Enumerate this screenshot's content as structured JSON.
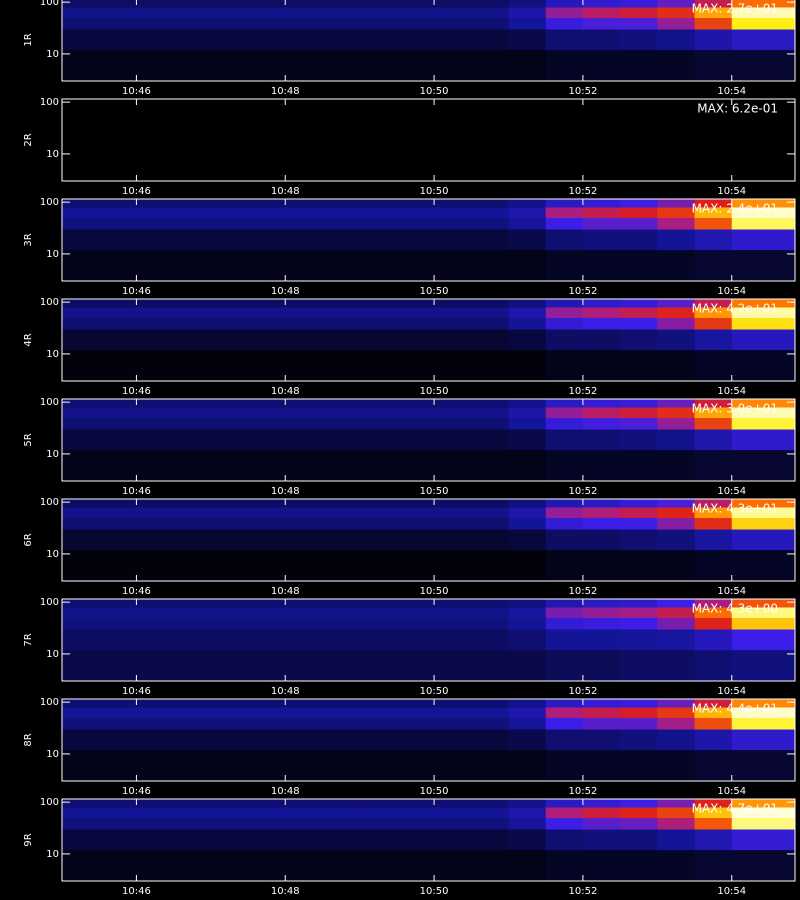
{
  "chart_data": [
    {
      "type": "heatmap",
      "ylabel": "1R",
      "annotation": "MAX: 2.7e+01",
      "log_y": true,
      "zlim": [
        0,
        100
      ],
      "xlim": [
        645,
        654.85
      ],
      "ylim": [
        3,
        115
      ],
      "xticks": [
        {
          "value": 646,
          "label": "10:46"
        },
        {
          "value": 648,
          "label": "10:48"
        },
        {
          "value": 650,
          "label": "10:50"
        },
        {
          "value": 652,
          "label": "10:52"
        },
        {
          "value": 654,
          "label": "10:54"
        }
      ],
      "yticks": [
        10,
        100
      ],
      "x_edges": [
        645,
        647,
        649,
        651,
        651.5,
        652,
        652.5,
        653,
        653.5,
        654,
        654.85
      ],
      "y_edges": [
        3,
        12,
        30,
        50,
        80,
        115
      ],
      "z": [
        [
          2,
          2,
          2,
          2,
          3,
          3,
          3,
          3,
          4,
          4
        ],
        [
          5,
          5,
          5,
          6,
          9,
          9,
          10,
          11,
          16,
          22
        ],
        [
          9,
          9,
          9,
          12,
          28,
          32,
          32,
          42,
          62,
          88
        ],
        [
          11,
          11,
          11,
          16,
          42,
          48,
          52,
          58,
          78,
          97
        ],
        [
          8,
          8,
          8,
          10,
          20,
          25,
          28,
          35,
          50,
          70
        ]
      ]
    },
    {
      "type": "heatmap",
      "ylabel": "2R",
      "annotation": "MAX: 6.2e-01",
      "log_y": true,
      "zlim": [
        0,
        100
      ],
      "xlim": [
        645,
        654.85
      ],
      "ylim": [
        3,
        115
      ],
      "xticks": [
        {
          "value": 646,
          "label": "10:46"
        },
        {
          "value": 648,
          "label": "10:48"
        },
        {
          "value": 650,
          "label": "10:50"
        },
        {
          "value": 652,
          "label": "10:52"
        },
        {
          "value": 654,
          "label": "10:54"
        }
      ],
      "yticks": [
        10,
        100
      ],
      "x_edges": [
        645,
        647,
        649,
        651,
        651.5,
        652,
        652.5,
        653,
        653.5,
        654,
        654.85
      ],
      "y_edges": [
        3,
        12,
        30,
        50,
        80,
        115
      ],
      "z": [
        [
          0,
          0,
          0,
          0,
          0,
          0,
          0,
          0,
          0,
          0
        ],
        [
          0,
          0,
          0,
          0,
          0,
          0,
          0,
          0,
          0,
          0
        ],
        [
          0,
          0,
          0,
          0,
          0,
          0,
          0,
          0,
          0,
          0
        ],
        [
          0,
          0,
          0,
          0,
          0,
          0,
          0,
          0,
          0,
          0
        ],
        [
          0,
          0,
          0,
          0,
          0,
          0,
          0,
          0,
          0,
          0
        ]
      ]
    },
    {
      "type": "heatmap",
      "ylabel": "3R",
      "annotation": "MAX: 2.4e+01",
      "log_y": true,
      "zlim": [
        0,
        100
      ],
      "xlim": [
        645,
        654.85
      ],
      "ylim": [
        3,
        115
      ],
      "xticks": [
        {
          "value": 646,
          "label": "10:46"
        },
        {
          "value": 648,
          "label": "10:48"
        },
        {
          "value": 650,
          "label": "10:50"
        },
        {
          "value": 652,
          "label": "10:52"
        },
        {
          "value": 654,
          "label": "10:54"
        }
      ],
      "yticks": [
        10,
        100
      ],
      "x_edges": [
        645,
        647,
        649,
        651,
        651.5,
        652,
        652.5,
        653,
        653.5,
        654,
        654.85
      ],
      "y_edges": [
        3,
        12,
        30,
        50,
        80,
        115
      ],
      "z": [
        [
          2,
          2,
          2,
          2,
          3,
          3,
          3,
          3,
          4,
          4
        ],
        [
          5,
          5,
          5,
          6,
          9,
          10,
          10,
          12,
          18,
          24
        ],
        [
          10,
          10,
          10,
          13,
          30,
          34,
          34,
          45,
          65,
          92
        ],
        [
          12,
          12,
          12,
          17,
          45,
          50,
          54,
          60,
          80,
          98
        ],
        [
          9,
          9,
          9,
          11,
          22,
          26,
          30,
          38,
          55,
          75
        ]
      ]
    },
    {
      "type": "heatmap",
      "ylabel": "4R",
      "annotation": "MAX: 4.2e+01",
      "log_y": true,
      "zlim": [
        0,
        100
      ],
      "xlim": [
        645,
        654.85
      ],
      "ylim": [
        3,
        115
      ],
      "xticks": [
        {
          "value": 646,
          "label": "10:46"
        },
        {
          "value": 648,
          "label": "10:48"
        },
        {
          "value": 650,
          "label": "10:50"
        },
        {
          "value": 652,
          "label": "10:52"
        },
        {
          "value": 654,
          "label": "10:54"
        }
      ],
      "yticks": [
        10,
        100
      ],
      "x_edges": [
        645,
        647,
        649,
        651,
        651.5,
        652,
        652.5,
        653,
        653.5,
        654,
        654.85
      ],
      "y_edges": [
        3,
        12,
        30,
        50,
        80,
        115
      ],
      "z": [
        [
          1,
          1,
          1,
          1,
          2,
          2,
          2,
          2,
          3,
          3
        ],
        [
          4,
          4,
          4,
          5,
          8,
          8,
          9,
          10,
          14,
          20
        ],
        [
          9,
          9,
          9,
          12,
          26,
          30,
          30,
          40,
          60,
          86
        ],
        [
          11,
          11,
          11,
          16,
          42,
          46,
          50,
          56,
          76,
          96
        ],
        [
          8,
          8,
          8,
          10,
          18,
          24,
          26,
          34,
          50,
          72
        ]
      ]
    },
    {
      "type": "heatmap",
      "ylabel": "5R",
      "annotation": "MAX: 3.0e+01",
      "log_y": true,
      "zlim": [
        0,
        100
      ],
      "xlim": [
        645,
        654.85
      ],
      "ylim": [
        3,
        115
      ],
      "xticks": [
        {
          "value": 646,
          "label": "10:46"
        },
        {
          "value": 648,
          "label": "10:48"
        },
        {
          "value": 650,
          "label": "10:50"
        },
        {
          "value": 652,
          "label": "10:52"
        },
        {
          "value": 654,
          "label": "10:54"
        }
      ],
      "yticks": [
        10,
        100
      ],
      "x_edges": [
        645,
        647,
        649,
        651,
        651.5,
        652,
        652.5,
        653,
        653.5,
        654,
        654.85
      ],
      "y_edges": [
        3,
        12,
        30,
        50,
        80,
        115
      ],
      "z": [
        [
          2,
          2,
          2,
          2,
          3,
          3,
          3,
          3,
          4,
          4
        ],
        [
          5,
          5,
          5,
          6,
          9,
          9,
          10,
          11,
          17,
          24
        ],
        [
          9,
          9,
          9,
          12,
          27,
          31,
          32,
          42,
          62,
          90
        ],
        [
          11,
          11,
          11,
          16,
          42,
          48,
          52,
          58,
          78,
          97
        ],
        [
          9,
          9,
          9,
          11,
          22,
          26,
          28,
          36,
          52,
          74
        ]
      ]
    },
    {
      "type": "heatmap",
      "ylabel": "6R",
      "annotation": "MAX: 4.3e+01",
      "log_y": true,
      "zlim": [
        0,
        100
      ],
      "xlim": [
        645,
        654.85
      ],
      "ylim": [
        3,
        115
      ],
      "xticks": [
        {
          "value": 646,
          "label": "10:46"
        },
        {
          "value": 648,
          "label": "10:48"
        },
        {
          "value": 650,
          "label": "10:50"
        },
        {
          "value": 652,
          "label": "10:52"
        },
        {
          "value": 654,
          "label": "10:54"
        }
      ],
      "yticks": [
        10,
        100
      ],
      "x_edges": [
        645,
        647,
        649,
        651,
        651.5,
        652,
        652.5,
        653,
        653.5,
        654,
        654.85
      ],
      "y_edges": [
        3,
        12,
        30,
        50,
        80,
        115
      ],
      "z": [
        [
          1,
          1,
          1,
          1,
          2,
          2,
          2,
          2,
          3,
          3
        ],
        [
          4,
          4,
          4,
          5,
          8,
          8,
          9,
          10,
          14,
          20
        ],
        [
          9,
          9,
          9,
          12,
          26,
          30,
          30,
          40,
          58,
          84
        ],
        [
          11,
          11,
          11,
          16,
          42,
          46,
          50,
          56,
          76,
          95
        ],
        [
          8,
          8,
          8,
          10,
          18,
          22,
          26,
          32,
          48,
          70
        ]
      ]
    },
    {
      "type": "heatmap",
      "ylabel": "7R",
      "annotation": "MAX: 4.3e+00",
      "log_y": true,
      "zlim": [
        0,
        100
      ],
      "xlim": [
        645,
        654.85
      ],
      "ylim": [
        3,
        115
      ],
      "xticks": [
        {
          "value": 646,
          "label": "10:46"
        },
        {
          "value": 648,
          "label": "10:48"
        },
        {
          "value": 650,
          "label": "10:50"
        },
        {
          "value": 652,
          "label": "10:52"
        },
        {
          "value": 654,
          "label": "10:54"
        }
      ],
      "yticks": [
        10,
        100
      ],
      "x_edges": [
        645,
        647,
        649,
        651,
        651.5,
        652,
        652.5,
        653,
        653.5,
        654,
        654.85
      ],
      "y_edges": [
        3,
        12,
        30,
        50,
        80,
        115
      ],
      "z": [
        [
          6,
          6,
          6,
          6,
          7,
          7,
          8,
          8,
          9,
          10
        ],
        [
          8,
          8,
          8,
          9,
          12,
          12,
          13,
          14,
          20,
          30
        ],
        [
          10,
          10,
          10,
          12,
          26,
          28,
          30,
          38,
          56,
          82
        ],
        [
          11,
          11,
          11,
          14,
          38,
          42,
          44,
          50,
          70,
          94
        ],
        [
          9,
          9,
          9,
          10,
          18,
          22,
          24,
          30,
          45,
          65
        ]
      ]
    },
    {
      "type": "heatmap",
      "ylabel": "8R",
      "annotation": "MAX: 4.4e+01",
      "log_y": true,
      "zlim": [
        0,
        100
      ],
      "xlim": [
        645,
        654.85
      ],
      "ylim": [
        3,
        115
      ],
      "xticks": [
        {
          "value": 646,
          "label": "10:46"
        },
        {
          "value": 648,
          "label": "10:48"
        },
        {
          "value": 650,
          "label": "10:50"
        },
        {
          "value": 652,
          "label": "10:52"
        },
        {
          "value": 654,
          "label": "10:54"
        }
      ],
      "yticks": [
        10,
        100
      ],
      "x_edges": [
        645,
        647,
        649,
        651,
        651.5,
        652,
        652.5,
        653,
        653.5,
        654,
        654.85
      ],
      "y_edges": [
        3,
        12,
        30,
        50,
        80,
        115
      ],
      "z": [
        [
          2,
          2,
          2,
          2,
          3,
          3,
          3,
          3,
          4,
          4
        ],
        [
          5,
          5,
          5,
          6,
          9,
          9,
          10,
          11,
          16,
          24
        ],
        [
          10,
          10,
          10,
          13,
          30,
          34,
          34,
          44,
          64,
          90
        ],
        [
          12,
          12,
          12,
          17,
          46,
          50,
          54,
          60,
          80,
          98
        ],
        [
          9,
          9,
          9,
          11,
          22,
          26,
          28,
          36,
          52,
          74
        ]
      ]
    },
    {
      "type": "heatmap",
      "ylabel": "9R",
      "annotation": "MAX: 4.7e+01",
      "log_y": true,
      "zlim": [
        0,
        100
      ],
      "xlim": [
        645,
        654.85
      ],
      "ylim": [
        3,
        115
      ],
      "xticks": [
        {
          "value": 646,
          "label": "10:46"
        },
        {
          "value": 648,
          "label": "10:48"
        },
        {
          "value": 650,
          "label": "10:50"
        },
        {
          "value": 652,
          "label": "10:52"
        },
        {
          "value": 654,
          "label": "10:54"
        }
      ],
      "yticks": [
        10,
        100
      ],
      "x_edges": [
        645,
        647,
        649,
        651,
        651.5,
        652,
        652.5,
        653,
        653.5,
        654,
        654.85
      ],
      "y_edges": [
        3,
        12,
        30,
        50,
        80,
        115
      ],
      "z": [
        [
          2,
          2,
          2,
          2,
          3,
          3,
          3,
          3,
          4,
          4
        ],
        [
          5,
          5,
          5,
          6,
          9,
          10,
          10,
          12,
          18,
          26
        ],
        [
          10,
          10,
          10,
          13,
          30,
          34,
          36,
          46,
          66,
          94
        ],
        [
          12,
          12,
          12,
          17,
          46,
          52,
          56,
          62,
          82,
          99
        ],
        [
          9,
          9,
          9,
          11,
          22,
          26,
          30,
          38,
          56,
          76
        ]
      ]
    }
  ]
}
